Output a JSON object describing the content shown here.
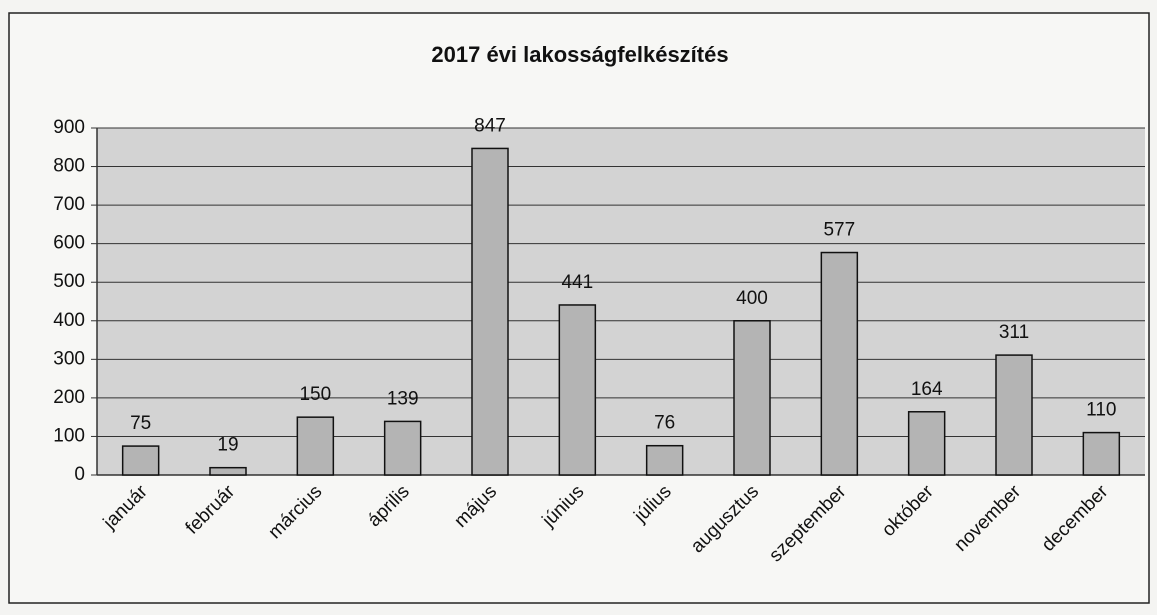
{
  "chart_data": {
    "type": "bar",
    "title": "2017 évi lakosságfelkészítés",
    "categories": [
      "január",
      "február",
      "március",
      "április",
      "május",
      "június",
      "július",
      "augusztus",
      "szeptember",
      "október",
      "november",
      "december"
    ],
    "values": [
      75,
      19,
      150,
      139,
      847,
      441,
      76,
      400,
      577,
      164,
      311,
      110
    ],
    "color": "#b4b4b4",
    "ylim": [
      0,
      900
    ],
    "yticks": [
      0,
      100,
      200,
      300,
      400,
      500,
      600,
      700,
      800,
      900
    ],
    "grid": true
  }
}
